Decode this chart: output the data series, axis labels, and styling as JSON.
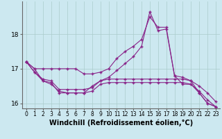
{
  "xlabel": "Windchill (Refroidissement éolien,°C)",
  "bg_color": "#cce8f0",
  "grid_color": "#aacccc",
  "line_color": "#882288",
  "marker": "+",
  "hours": [
    0,
    1,
    2,
    3,
    4,
    5,
    6,
    7,
    8,
    9,
    10,
    11,
    12,
    13,
    14,
    15,
    16,
    17,
    18,
    19,
    20,
    21,
    22,
    23
  ],
  "series": [
    [
      17.2,
      16.9,
      16.65,
      16.55,
      16.35,
      16.3,
      16.3,
      16.3,
      16.5,
      16.65,
      16.75,
      16.95,
      17.15,
      17.35,
      17.65,
      18.65,
      18.1,
      18.15,
      16.8,
      16.55,
      16.55,
      16.3,
      16.0,
      15.9
    ],
    [
      17.2,
      17.0,
      17.0,
      17.0,
      17.0,
      17.0,
      17.0,
      16.85,
      16.85,
      16.9,
      17.0,
      17.3,
      17.5,
      17.65,
      17.85,
      18.5,
      18.2,
      18.2,
      16.8,
      16.75,
      16.65,
      16.3,
      16.0,
      15.9
    ],
    [
      17.2,
      16.9,
      16.7,
      16.65,
      16.4,
      16.4,
      16.4,
      16.4,
      16.45,
      16.65,
      16.7,
      16.7,
      16.7,
      16.7,
      16.7,
      16.7,
      16.7,
      16.7,
      16.7,
      16.7,
      16.65,
      16.5,
      16.3,
      16.05
    ],
    [
      17.2,
      17.0,
      16.65,
      16.6,
      16.3,
      16.3,
      16.3,
      16.3,
      16.35,
      16.55,
      16.6,
      16.6,
      16.6,
      16.6,
      16.6,
      16.6,
      16.6,
      16.6,
      16.6,
      16.6,
      16.55,
      16.35,
      16.1,
      15.9
    ]
  ],
  "ylim": [
    15.85,
    18.95
  ],
  "yticks": [
    16,
    17,
    18
  ],
  "xticks": [
    0,
    1,
    2,
    3,
    4,
    5,
    6,
    7,
    8,
    9,
    10,
    11,
    12,
    13,
    14,
    15,
    16,
    17,
    18,
    19,
    20,
    21,
    22,
    23
  ],
  "xlabel_fontsize": 7,
  "tick_fontsize": 6.5,
  "tick_fontsize_x": 5.5
}
